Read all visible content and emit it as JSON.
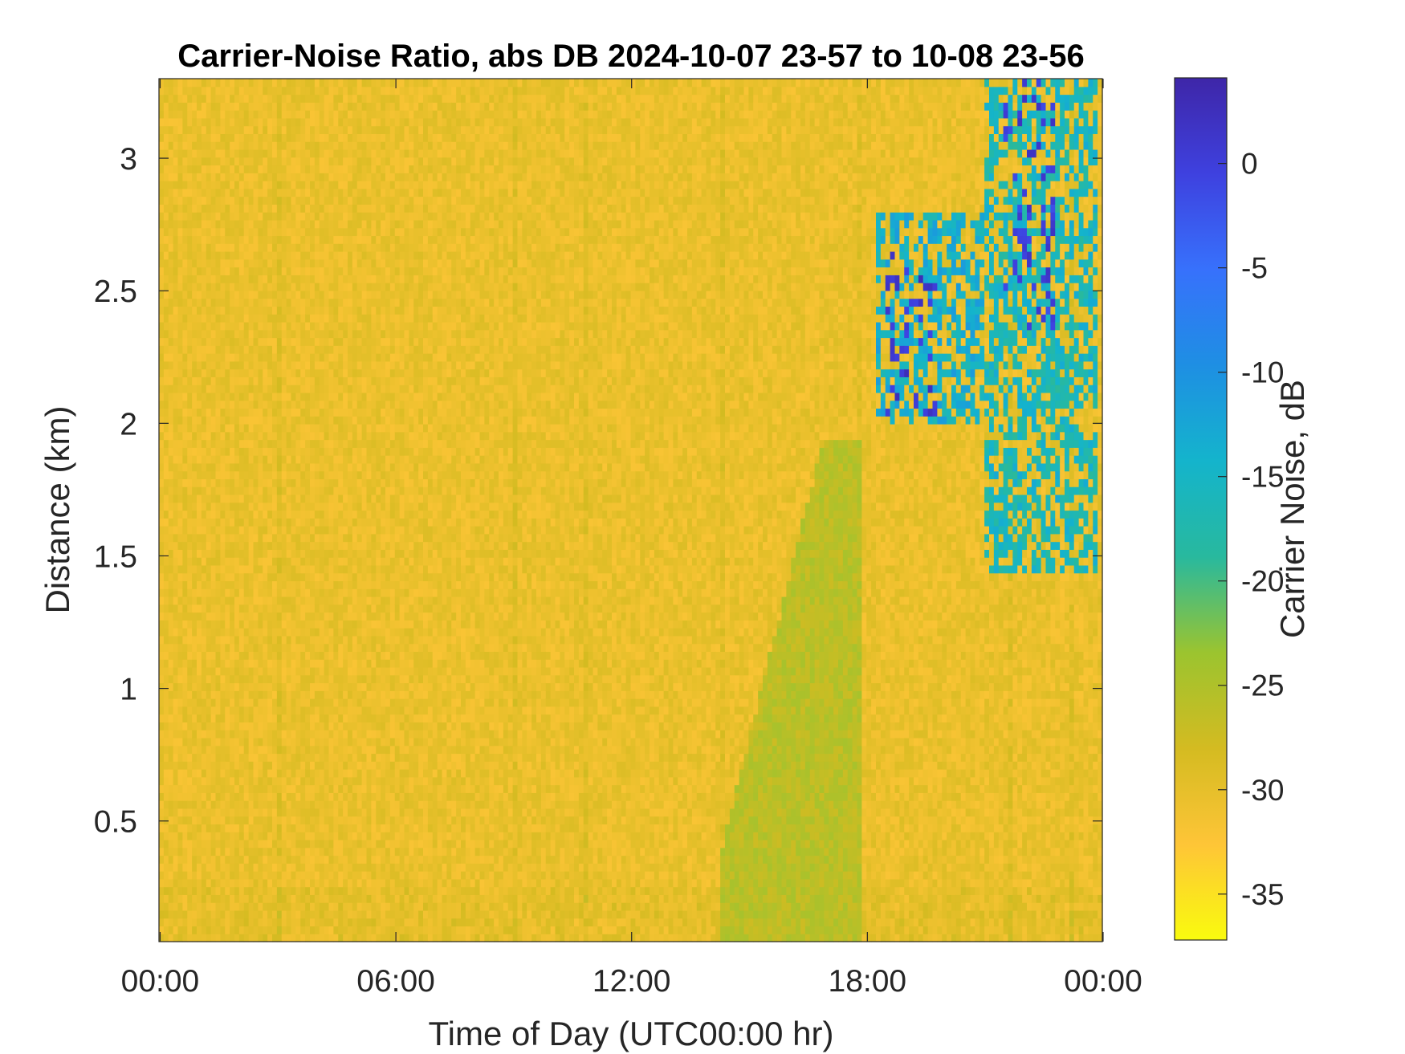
{
  "chart_data": {
    "type": "heatmap",
    "title": "Carrier-Noise Ratio, abs DB 2024-10-07 23-57 to 10-08 23-56",
    "xlabel": "Time of Day (UTC00:00 hr)",
    "ylabel": "Distance (km)",
    "colorbar_label": "Carrier Noise, dB",
    "x_ticks": [
      {
        "value": 0,
        "label": "00:00"
      },
      {
        "value": 6,
        "label": "06:00"
      },
      {
        "value": 12,
        "label": "12:00"
      },
      {
        "value": 18,
        "label": "18:00"
      },
      {
        "value": 24,
        "label": "00:00"
      }
    ],
    "y_ticks": [
      {
        "value": 0.5,
        "label": "0.5"
      },
      {
        "value": 1,
        "label": "1"
      },
      {
        "value": 1.5,
        "label": "1.5"
      },
      {
        "value": 2,
        "label": "2"
      },
      {
        "value": 2.5,
        "label": "2.5"
      },
      {
        "value": 3,
        "label": "3"
      }
    ],
    "colorbar_ticks": [
      {
        "value": 0,
        "label": "0"
      },
      {
        "value": -5,
        "label": "-5"
      },
      {
        "value": -10,
        "label": "-10"
      },
      {
        "value": -15,
        "label": "-15"
      },
      {
        "value": -20,
        "label": "-20"
      },
      {
        "value": -25,
        "label": "-25"
      },
      {
        "value": -30,
        "label": "-30"
      },
      {
        "value": -35,
        "label": "-35"
      }
    ],
    "xlim": [
      -0.03,
      23.98
    ],
    "ylim": [
      0.045,
      3.3
    ],
    "clim": [
      -37.2,
      4.1
    ],
    "colormap": "parula (reversed)",
    "colormap_stops": [
      "#f9fb0e",
      "#fec537",
      "#d4bb21",
      "#9bc42f",
      "#28b99e",
      "#14b4cc",
      "#1e8fe3",
      "#3771fc",
      "#3e41df",
      "#3e26a8"
    ],
    "background_level": -30.5,
    "features": [
      {
        "kind": "enhanced-band",
        "time_hr": [
          14.3,
          17.8
        ],
        "distance_km": [
          0.05,
          1.95
        ],
        "level_db": -26
      },
      {
        "kind": "cloud-patch",
        "time_hr": [
          18.2,
          21.0
        ],
        "distance_km": [
          2.0,
          2.8
        ],
        "level_db": -14
      },
      {
        "kind": "cloud-patch",
        "time_hr": [
          21.0,
          23.8
        ],
        "distance_km": [
          1.45,
          3.3
        ],
        "level_db": -16
      },
      {
        "kind": "strong-return",
        "time_hr": [
          18.5,
          19.8
        ],
        "distance_km": [
          2.02,
          2.65
        ],
        "level_db": 1
      },
      {
        "kind": "strong-return",
        "time_hr": [
          21.5,
          22.8
        ],
        "distance_km": [
          2.35,
          3.3
        ],
        "level_db": 0
      }
    ]
  }
}
